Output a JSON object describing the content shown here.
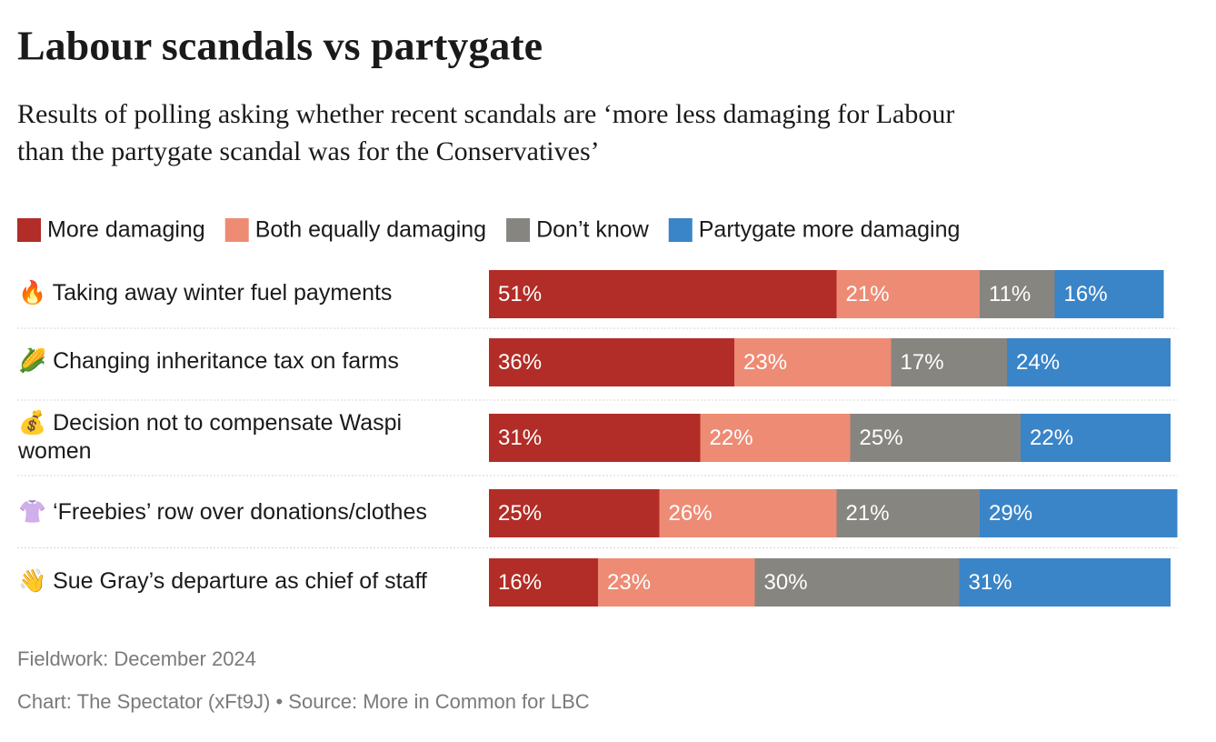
{
  "chart_data": {
    "type": "stacked-bar-horizontal",
    "title": "Labour scandals vs partygate",
    "subtitle": [
      "Results of polling asking whether recent scandals are ‘more less damaging for Labour",
      "than the partygate scandal was for the Conservatives’"
    ],
    "categories": [
      "🔥 Taking away winter fuel payments",
      "🌽 Changing inheritance tax on farms",
      "💰 Decision not to compensate Waspi women",
      "👚 ‘Freebies’ row over donations/clothes",
      "👋 Sue Gray’s departure as chief of staff"
    ],
    "xlim": [
      0,
      100
    ],
    "series": [
      {
        "name": "More damaging",
        "color": "#b22d27",
        "values": [
          51,
          36,
          31,
          25,
          16
        ],
        "value_labels": [
          "51%",
          "36%",
          "31%",
          "25%",
          "16%"
        ]
      },
      {
        "name": "Both equally damaging",
        "color": "#ee8b74",
        "values": [
          21,
          23,
          22,
          26,
          23
        ],
        "value_labels": [
          "21%",
          "23%",
          "22%",
          "26%",
          "23%"
        ]
      },
      {
        "name": "Don’t know",
        "color": "#878580",
        "values": [
          11,
          17,
          25,
          21,
          30
        ],
        "value_labels": [
          "11%",
          "17%",
          "25%",
          "21%",
          "30%"
        ]
      },
      {
        "name": "Partygate more damaging",
        "color": "#3a84c8",
        "values": [
          16,
          24,
          22,
          29,
          31
        ],
        "value_labels": [
          "16%",
          "24%",
          "22%",
          "29%",
          "31%"
        ]
      }
    ],
    "notes": [
      "Fieldwork: December 2024",
      "Chart: The Spectator (xFt9J) • Source: More in Common for LBC"
    ]
  }
}
